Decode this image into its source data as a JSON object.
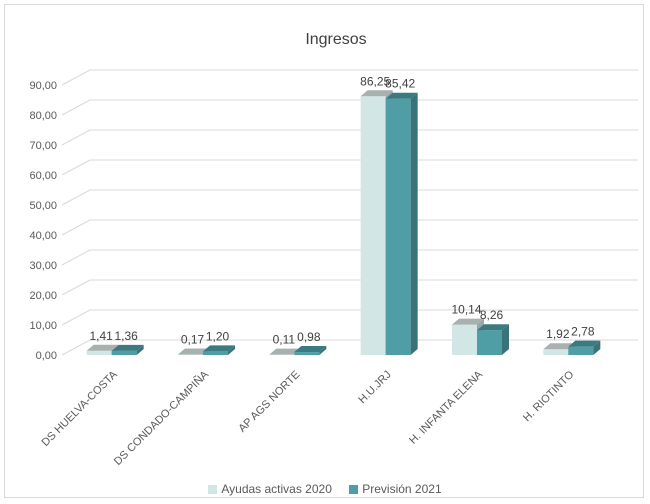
{
  "chart_data": {
    "type": "bar",
    "title": "Ingresos",
    "categories": [
      "DS HUELVA-COSTA",
      "DS CONDADO-CAMPIÑA",
      "AP AGS NORTE",
      "H.U.JRJ",
      "H. INFANTA ELENA",
      "H. RIOTINTO"
    ],
    "series": [
      {
        "name": "Ayudas activas 2020",
        "values": [
          1.41,
          0.17,
          0.11,
          86.25,
          10.14,
          1.92
        ],
        "labels": [
          "1,41",
          "0,17",
          "0,11",
          "86,25",
          "10,14",
          "1,92"
        ],
        "color": "#d3e6e6"
      },
      {
        "name": "Previsión 2021",
        "values": [
          1.36,
          1.2,
          0.98,
          85.42,
          8.26,
          2.78
        ],
        "labels": [
          "1,36",
          "1,20",
          "0,98",
          "85,42",
          "8,26",
          "2,78"
        ],
        "color": "#4f9ea6"
      }
    ],
    "yticks": [
      0,
      10,
      20,
      30,
      40,
      50,
      60,
      70,
      80,
      90
    ],
    "ytick_labels": [
      "0,00",
      "10,00",
      "20,00",
      "30,00",
      "40,00",
      "50,00",
      "60,00",
      "70,00",
      "80,00",
      "90,00"
    ],
    "ylim": [
      0,
      90
    ],
    "grid": true,
    "legend": "bottom",
    "style": "3d-column"
  }
}
